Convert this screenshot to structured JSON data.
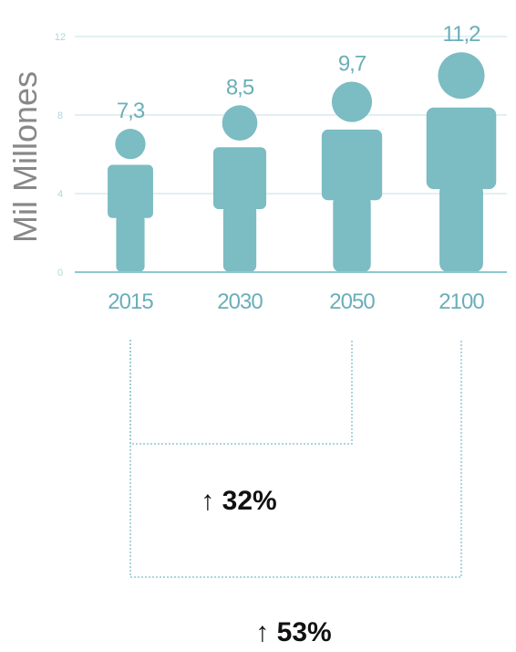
{
  "chart_data": {
    "type": "bar",
    "ylabel": "Mil Millones",
    "categories": [
      "2015",
      "2030",
      "2050",
      "2100"
    ],
    "values": [
      7.3,
      8.5,
      9.7,
      11.2
    ],
    "value_labels": [
      "7,3",
      "8,5",
      "9,7",
      "11,2"
    ],
    "yticks": [
      0,
      4,
      8,
      12
    ],
    "ylim": [
      0,
      12
    ],
    "grid": true,
    "mark_shape": "person-icon",
    "colors": {
      "figure": "#7cbcc3",
      "label": "#6aafb8",
      "grid": "#d8ecef",
      "axis": "#8cc8cf",
      "ytick": "#b0d7dc",
      "ylabel": "#888888",
      "bracket": "#8fc8cf",
      "annotation": "#111111"
    },
    "annotations": [
      {
        "text": "↑ 32%",
        "from": "2015",
        "to": "2050"
      },
      {
        "text": "↑ 53%",
        "from": "2015",
        "to": "2100"
      }
    ]
  }
}
